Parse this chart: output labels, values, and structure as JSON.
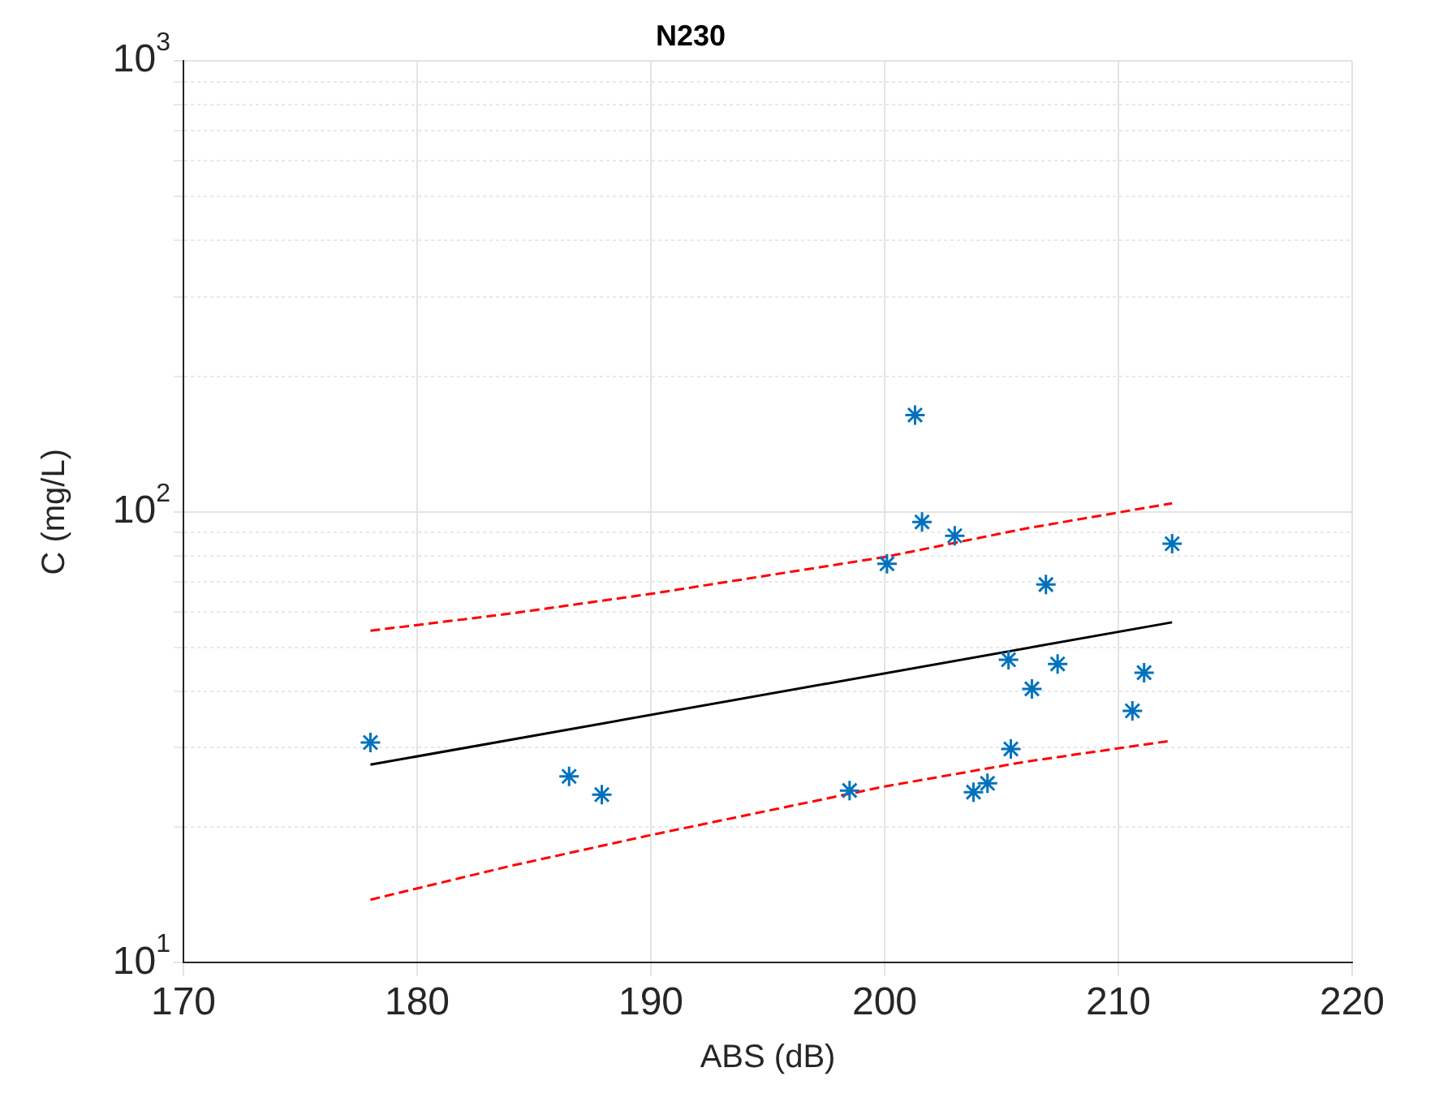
{
  "chart_data": {
    "type": "scatter",
    "title": "N230",
    "xlabel": "ABS (dB)",
    "ylabel": "C (mg/L)",
    "log": "y",
    "grid": true,
    "legend": false,
    "xlim": [
      170,
      220
    ],
    "xticks": [
      170,
      180,
      190,
      200,
      210,
      220
    ],
    "ylim": [
      10,
      1000
    ],
    "yticks": [
      {
        "value": 10,
        "label": "10$^{1}$"
      },
      {
        "value": 20,
        "label": null
      },
      {
        "value": 30,
        "label": null
      },
      {
        "value": 40,
        "label": null
      },
      {
        "value": 50,
        "label": null
      },
      {
        "value": 60,
        "label": null
      },
      {
        "value": 70,
        "label": null
      },
      {
        "value": 80,
        "label": null
      },
      {
        "value": 90,
        "label": null
      },
      {
        "value": 100,
        "label": "10$^{2}$"
      },
      {
        "value": 200,
        "label": null
      },
      {
        "value": 300,
        "label": null
      },
      {
        "value": 400,
        "label": null
      },
      {
        "value": 500,
        "label": null
      },
      {
        "value": 600,
        "label": null
      },
      {
        "value": 700,
        "label": null
      },
      {
        "value": 800,
        "label": null
      },
      {
        "value": 900,
        "label": null
      },
      {
        "value": 1000,
        "label": "10$^{3}$"
      }
    ],
    "series": [
      {
        "type": "scatter",
        "color": "#0072bd",
        "marker": "cross",
        "x": [
          178.0,
          186.5,
          187.9,
          198.5,
          200.1,
          201.3,
          201.6,
          203.0,
          203.8,
          204.4,
          205.3,
          205.4,
          206.3,
          206.9,
          207.4,
          210.6,
          211.1,
          212.3
        ],
        "values": [
          30.8,
          25.9,
          23.6,
          24.1,
          76.7,
          164,
          95,
          88.5,
          23.9,
          25.0,
          47,
          29.8,
          40.5,
          69,
          46,
          36.2,
          44,
          85
        ]
      },
      {
        "type": "line",
        "color": "#000000",
        "marker": "none",
        "line_style": "solid",
        "x": [
          178,
          212.3
        ],
        "values": [
          27.5,
          56.9
        ]
      },
      {
        "type": "line",
        "color": "#ff0000",
        "marker": "none",
        "line_style": "dashed",
        "x": [
          178,
          184,
          190,
          200,
          206,
          212.3
        ],
        "values": [
          54.5,
          59.5,
          65.8,
          79.4,
          91.8,
          104.5
        ]
      },
      {
        "type": "line",
        "color": "#ff0000",
        "marker": "none",
        "line_style": "dashed",
        "x": [
          178,
          184,
          190,
          200,
          206,
          212.3
        ],
        "values": [
          13.8,
          16.4,
          19.2,
          24.6,
          27.9,
          31.1
        ]
      }
    ]
  }
}
